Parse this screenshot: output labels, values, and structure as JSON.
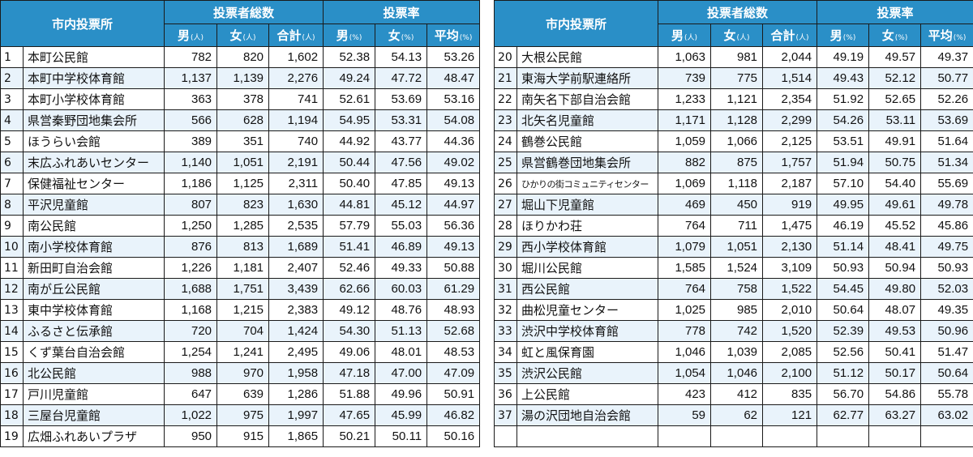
{
  "headers": {
    "place": "市内投票所",
    "voters_group": "投票者総数",
    "rate_group": "投票率",
    "male": "男",
    "female": "女",
    "total": "合計",
    "average": "平均",
    "unit_people": "(人)",
    "unit_percent": "(%)"
  },
  "left_rows": [
    {
      "no": "1",
      "name": "本町公民館",
      "m": "782",
      "f": "820",
      "t": "1,602",
      "rm": "52.38",
      "rf": "54.13",
      "ra": "53.26"
    },
    {
      "no": "2",
      "name": "本町中学校体育館",
      "m": "1,137",
      "f": "1,139",
      "t": "2,276",
      "rm": "49.24",
      "rf": "47.72",
      "ra": "48.47"
    },
    {
      "no": "3",
      "name": "本町小学校体育館",
      "m": "363",
      "f": "378",
      "t": "741",
      "rm": "52.61",
      "rf": "53.69",
      "ra": "53.16"
    },
    {
      "no": "4",
      "name": "県営秦野団地集会所",
      "m": "566",
      "f": "628",
      "t": "1,194",
      "rm": "54.95",
      "rf": "53.31",
      "ra": "54.08"
    },
    {
      "no": "5",
      "name": "ほうらい会館",
      "m": "389",
      "f": "351",
      "t": "740",
      "rm": "44.92",
      "rf": "43.77",
      "ra": "44.36"
    },
    {
      "no": "6",
      "name": "末広ふれあいセンター",
      "m": "1,140",
      "f": "1,051",
      "t": "2,191",
      "rm": "50.44",
      "rf": "47.56",
      "ra": "49.02"
    },
    {
      "no": "7",
      "name": "保健福祉センター",
      "m": "1,186",
      "f": "1,125",
      "t": "2,311",
      "rm": "50.40",
      "rf": "47.85",
      "ra": "49.13"
    },
    {
      "no": "8",
      "name": "平沢児童館",
      "m": "807",
      "f": "823",
      "t": "1,630",
      "rm": "44.81",
      "rf": "45.12",
      "ra": "44.97"
    },
    {
      "no": "9",
      "name": "南公民館",
      "m": "1,250",
      "f": "1,285",
      "t": "2,535",
      "rm": "57.79",
      "rf": "55.03",
      "ra": "56.36"
    },
    {
      "no": "10",
      "name": "南小学校体育館",
      "m": "876",
      "f": "813",
      "t": "1,689",
      "rm": "51.41",
      "rf": "46.89",
      "ra": "49.13"
    },
    {
      "no": "11",
      "name": "新田町自治会館",
      "m": "1,226",
      "f": "1,181",
      "t": "2,407",
      "rm": "52.46",
      "rf": "49.33",
      "ra": "50.88"
    },
    {
      "no": "12",
      "name": "南が丘公民館",
      "m": "1,688",
      "f": "1,751",
      "t": "3,439",
      "rm": "62.66",
      "rf": "60.03",
      "ra": "61.29"
    },
    {
      "no": "13",
      "name": "東中学校体育館",
      "m": "1,168",
      "f": "1,215",
      "t": "2,383",
      "rm": "49.12",
      "rf": "48.76",
      "ra": "48.93"
    },
    {
      "no": "14",
      "name": "ふるさと伝承館",
      "m": "720",
      "f": "704",
      "t": "1,424",
      "rm": "54.30",
      "rf": "51.13",
      "ra": "52.68"
    },
    {
      "no": "15",
      "name": "くず葉台自治会館",
      "m": "1,254",
      "f": "1,241",
      "t": "2,495",
      "rm": "49.06",
      "rf": "48.01",
      "ra": "48.53"
    },
    {
      "no": "16",
      "name": "北公民館",
      "m": "988",
      "f": "970",
      "t": "1,958",
      "rm": "47.18",
      "rf": "47.00",
      "ra": "47.09"
    },
    {
      "no": "17",
      "name": "戸川児童館",
      "m": "647",
      "f": "639",
      "t": "1,286",
      "rm": "51.88",
      "rf": "49.96",
      "ra": "50.91"
    },
    {
      "no": "18",
      "name": "三屋台児童館",
      "m": "1,022",
      "f": "975",
      "t": "1,997",
      "rm": "47.65",
      "rf": "45.99",
      "ra": "46.82"
    },
    {
      "no": "19",
      "name": "広畑ふれあいプラザ",
      "m": "950",
      "f": "915",
      "t": "1,865",
      "rm": "50.21",
      "rf": "50.11",
      "ra": "50.16"
    }
  ],
  "right_rows": [
    {
      "no": "20",
      "name": "大根公民館",
      "m": "1,063",
      "f": "981",
      "t": "2,044",
      "rm": "49.19",
      "rf": "49.57",
      "ra": "49.37"
    },
    {
      "no": "21",
      "name": "東海大学前駅連絡所",
      "m": "739",
      "f": "775",
      "t": "1,514",
      "rm": "49.43",
      "rf": "52.12",
      "ra": "50.77"
    },
    {
      "no": "22",
      "name": "南矢名下部自治会館",
      "m": "1,233",
      "f": "1,121",
      "t": "2,354",
      "rm": "51.92",
      "rf": "52.65",
      "ra": "52.26"
    },
    {
      "no": "23",
      "name": "北矢名児童館",
      "m": "1,171",
      "f": "1,128",
      "t": "2,299",
      "rm": "54.26",
      "rf": "53.11",
      "ra": "53.69"
    },
    {
      "no": "24",
      "name": "鶴巻公民館",
      "m": "1,059",
      "f": "1,066",
      "t": "2,125",
      "rm": "53.51",
      "rf": "49.91",
      "ra": "51.64"
    },
    {
      "no": "25",
      "name": "県営鶴巻団地集会所",
      "m": "882",
      "f": "875",
      "t": "1,757",
      "rm": "51.94",
      "rf": "50.75",
      "ra": "51.34"
    },
    {
      "no": "26",
      "name": "ひかりの街コミュニティセンター",
      "m": "1,069",
      "f": "1,118",
      "t": "2,187",
      "rm": "57.10",
      "rf": "54.40",
      "ra": "55.69"
    },
    {
      "no": "27",
      "name": "堀山下児童館",
      "m": "469",
      "f": "450",
      "t": "919",
      "rm": "49.95",
      "rf": "49.61",
      "ra": "49.78"
    },
    {
      "no": "28",
      "name": "ほりかわ荘",
      "m": "764",
      "f": "711",
      "t": "1,475",
      "rm": "46.19",
      "rf": "45.52",
      "ra": "45.86"
    },
    {
      "no": "29",
      "name": "西小学校体育館",
      "m": "1,079",
      "f": "1,051",
      "t": "2,130",
      "rm": "51.14",
      "rf": "48.41",
      "ra": "49.75"
    },
    {
      "no": "30",
      "name": "堀川公民館",
      "m": "1,585",
      "f": "1,524",
      "t": "3,109",
      "rm": "50.93",
      "rf": "50.94",
      "ra": "50.93"
    },
    {
      "no": "31",
      "name": "西公民館",
      "m": "764",
      "f": "758",
      "t": "1,522",
      "rm": "54.45",
      "rf": "49.80",
      "ra": "52.03"
    },
    {
      "no": "32",
      "name": "曲松児童センター",
      "m": "1,025",
      "f": "985",
      "t": "2,010",
      "rm": "50.64",
      "rf": "48.07",
      "ra": "49.35"
    },
    {
      "no": "33",
      "name": "渋沢中学校体育館",
      "m": "778",
      "f": "742",
      "t": "1,520",
      "rm": "52.39",
      "rf": "49.53",
      "ra": "50.96"
    },
    {
      "no": "34",
      "name": "虹と風保育園",
      "m": "1,046",
      "f": "1,039",
      "t": "2,085",
      "rm": "52.56",
      "rf": "50.41",
      "ra": "51.47"
    },
    {
      "no": "35",
      "name": "渋沢公民館",
      "m": "1,054",
      "f": "1,046",
      "t": "2,100",
      "rm": "51.12",
      "rf": "50.17",
      "ra": "50.64"
    },
    {
      "no": "36",
      "name": "上公民館",
      "m": "423",
      "f": "412",
      "t": "835",
      "rm": "56.70",
      "rf": "54.86",
      "ra": "55.78"
    },
    {
      "no": "37",
      "name": "湯の沢団地自治会館",
      "m": "59",
      "f": "62",
      "t": "121",
      "rm": "62.77",
      "rf": "63.27",
      "ra": "63.02"
    }
  ]
}
